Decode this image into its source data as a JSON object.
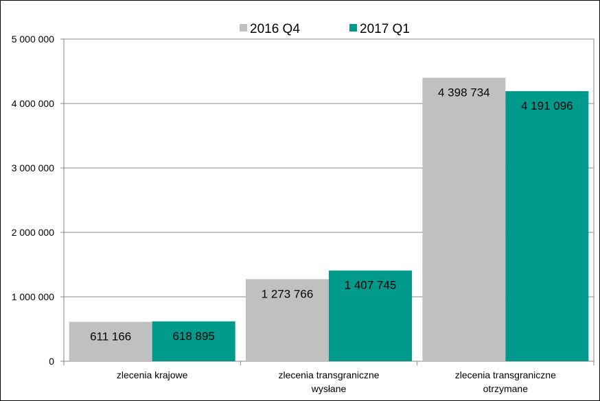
{
  "chart_data": {
    "type": "bar",
    "categories": [
      [
        "zlecenia krajowe"
      ],
      [
        "zlecenia transgraniczne",
        "wysłane"
      ],
      [
        "zlecenia transgraniczne",
        "otrzymane"
      ]
    ],
    "series": [
      {
        "name": "2016 Q4",
        "color": "#c0c0c0",
        "values": [
          611166,
          1273766,
          4398734
        ],
        "labels": [
          "611 166",
          "1 273 766",
          "4 398 734"
        ]
      },
      {
        "name": "2017 Q1",
        "color": "#009a8c",
        "values": [
          618895,
          1407745,
          4191096
        ],
        "labels": [
          "618 895",
          "1 407 745",
          "4 191 096"
        ]
      }
    ],
    "ylim": [
      0,
      5000000
    ],
    "yticks": [
      0,
      1000000,
      2000000,
      3000000,
      4000000,
      5000000
    ],
    "ytick_labels": [
      "0",
      "1 000 000",
      "2 000 000",
      "3 000 000",
      "4 000 000",
      "5 000 000"
    ],
    "grid": true,
    "legend_position": "top"
  }
}
